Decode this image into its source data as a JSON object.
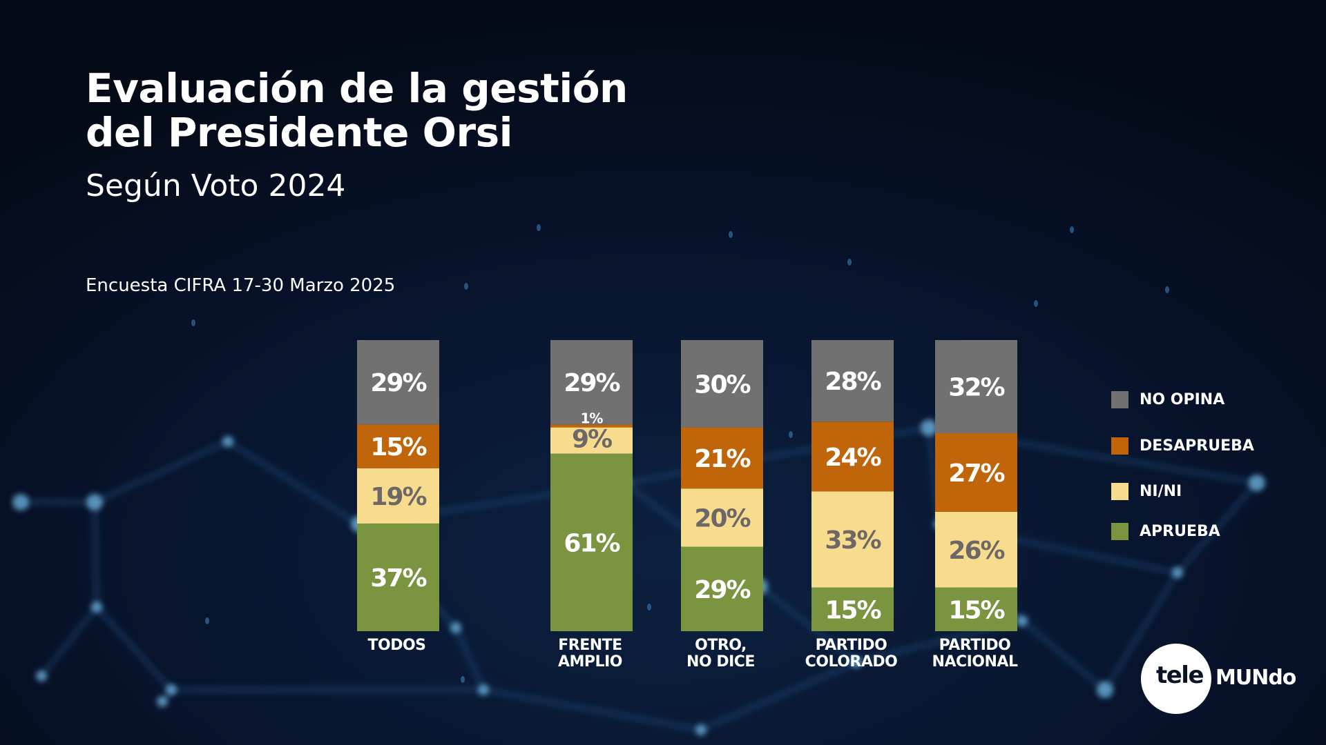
{
  "header": {
    "title_line1": "Evaluación de la gestión",
    "title_line2": "del Presidente Orsi",
    "subtitle": "Según Voto 2024",
    "source": "Encuesta CIFRA 17-30 Marzo 2025"
  },
  "logo": {
    "part1": "tele",
    "part2": "MUNdo"
  },
  "colors": {
    "background": "#050c1b",
    "no_opina": "#717171",
    "desaprueba": "#c0650a",
    "ni_ni": "#f8dc8e",
    "aprueba": "#7a9440",
    "label_light": "#ffffff",
    "label_dark": "#6e6767"
  },
  "chart_data": {
    "type": "bar",
    "stacked": true,
    "orientation": "vertical",
    "title": "Evaluación de la gestión del Presidente Orsi",
    "subtitle": "Según Voto 2024",
    "note": "Encuesta CIFRA 17-30 Marzo 2025",
    "xlabel": "",
    "ylabel": "",
    "ylim": [
      0,
      100
    ],
    "unit": "%",
    "grid": false,
    "legend_position": "right",
    "categories": [
      [
        "TODOS"
      ],
      [
        "FRENTE",
        "AMPLIO"
      ],
      [
        "OTRO,",
        "NO DICE"
      ],
      [
        "PARTIDO",
        "COLORADO"
      ],
      [
        "PARTIDO",
        "NACIONAL"
      ]
    ],
    "series": [
      {
        "name": "APRUEBA",
        "key": "aprueba",
        "values": [
          37,
          61,
          29,
          15,
          15
        ],
        "label_color": "label_light"
      },
      {
        "name": "NI/NI",
        "key": "ni_ni",
        "values": [
          19,
          9,
          20,
          33,
          26
        ],
        "label_color": "label_dark"
      },
      {
        "name": "DESAPRUEBA",
        "key": "desaprueba",
        "values": [
          15,
          1,
          21,
          24,
          27
        ],
        "label_color": "label_light"
      },
      {
        "name": "NO OPINA",
        "key": "no_opina",
        "values": [
          29,
          29,
          30,
          28,
          32
        ],
        "label_color": "label_light"
      }
    ],
    "legend": [
      "NO OPINA",
      "DESAPRUEBA",
      "NI/NI",
      "APRUEBA"
    ]
  }
}
